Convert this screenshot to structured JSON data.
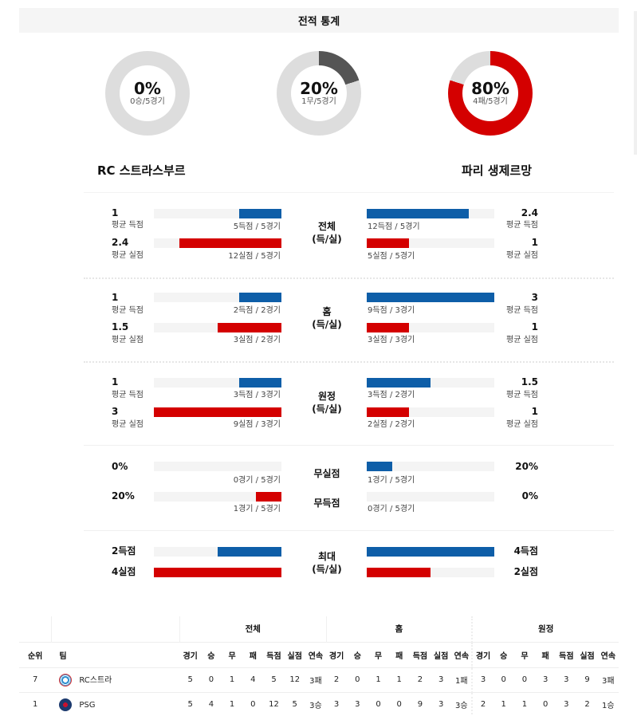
{
  "title": "전적 통계",
  "donuts": [
    {
      "id": "win",
      "pct": "0%",
      "sub": "0승/5경기",
      "value": 0,
      "color": "#cccccc",
      "track": "#dddddd"
    },
    {
      "id": "draw",
      "pct": "20%",
      "sub": "1무/5경기",
      "value": 20,
      "color": "#555555",
      "track": "#dddddd"
    },
    {
      "id": "loss",
      "pct": "80%",
      "sub": "4패/5경기",
      "value": 80,
      "color": "#d40000",
      "track": "#dddddd"
    }
  ],
  "teams": {
    "home": "RC 스트라스부르",
    "away": "파리 생제르망"
  },
  "colors": {
    "blue": "#0e5ea8",
    "red": "#d40000",
    "track": "#f4f4f4"
  },
  "sections": {
    "overall": {
      "label_line1": "전체",
      "label_line2": "(득/실)",
      "left": {
        "scored": {
          "value": "1",
          "label": "평균 득점",
          "caption": "5득점 / 5경기",
          "pct": 33
        },
        "conceded": {
          "value": "2.4",
          "label": "평균 실점",
          "caption": "12실점 / 5경기",
          "pct": 80
        }
      },
      "right": {
        "scored": {
          "value": "2.4",
          "label": "평균 득점",
          "caption": "12득점 / 5경기",
          "pct": 80
        },
        "conceded": {
          "value": "1",
          "label": "평균 실점",
          "caption": "5실점 / 5경기",
          "pct": 33
        }
      }
    },
    "home": {
      "label_line1": "홈",
      "label_line2": "(득/실)",
      "left": {
        "scored": {
          "value": "1",
          "label": "평균 득점",
          "caption": "2득점 / 2경기",
          "pct": 33
        },
        "conceded": {
          "value": "1.5",
          "label": "평균 실점",
          "caption": "3실점 / 2경기",
          "pct": 50
        }
      },
      "right": {
        "scored": {
          "value": "3",
          "label": "평균 득점",
          "caption": "9득점 / 3경기",
          "pct": 100
        },
        "conceded": {
          "value": "1",
          "label": "평균 실점",
          "caption": "3실점 / 3경기",
          "pct": 33
        }
      }
    },
    "away": {
      "label_line1": "원정",
      "label_line2": "(득/실)",
      "left": {
        "scored": {
          "value": "1",
          "label": "평균 득점",
          "caption": "3득점 / 3경기",
          "pct": 33
        },
        "conceded": {
          "value": "3",
          "label": "평균 실점",
          "caption": "9실점 / 3경기",
          "pct": 100
        }
      },
      "right": {
        "scored": {
          "value": "1.5",
          "label": "평균 득점",
          "caption": "3득점 / 2경기",
          "pct": 50
        },
        "conceded": {
          "value": "1",
          "label": "평균 실점",
          "caption": "2실점 / 2경기",
          "pct": 33
        }
      }
    },
    "clean": {
      "label_clean_sheet": "무실점",
      "label_no_goal": "무득점",
      "left": {
        "clean_sheet": {
          "value": "0%",
          "caption": "0경기 / 5경기",
          "pct": 0
        },
        "no_goal": {
          "value": "20%",
          "caption": "1경기 / 5경기",
          "pct": 20
        }
      },
      "right": {
        "clean_sheet": {
          "value": "20%",
          "caption": "1경기 / 5경기",
          "pct": 20
        },
        "no_goal": {
          "value": "0%",
          "caption": "0경기 / 5경기",
          "pct": 0
        }
      }
    },
    "max": {
      "label_line1": "최대",
      "label_line2": "(득/실)",
      "left": {
        "scored": {
          "value": "2득점",
          "pct": 50
        },
        "conceded": {
          "value": "4실점",
          "pct": 100
        }
      },
      "right": {
        "scored": {
          "value": "4득점",
          "pct": 100
        },
        "conceded": {
          "value": "2실점",
          "pct": 50
        }
      }
    }
  },
  "table": {
    "groups": [
      "전체",
      "홈",
      "원정"
    ],
    "col_rank": "순위",
    "col_team": "팀",
    "sub_cols": [
      "경기",
      "승",
      "무",
      "패",
      "득점",
      "실점",
      "연속"
    ],
    "rows": [
      {
        "rank": "7",
        "team": "RC스트라",
        "logo": "rcs",
        "overall": [
          "5",
          "0",
          "1",
          "4",
          "5",
          "12",
          "3패"
        ],
        "home": [
          "2",
          "0",
          "1",
          "1",
          "2",
          "3",
          "1패"
        ],
        "away": [
          "3",
          "0",
          "0",
          "3",
          "3",
          "9",
          "3패"
        ]
      },
      {
        "rank": "1",
        "team": "PSG",
        "logo": "psg",
        "overall": [
          "5",
          "4",
          "1",
          "0",
          "12",
          "5",
          "3승"
        ],
        "home": [
          "3",
          "3",
          "0",
          "0",
          "9",
          "3",
          "3승"
        ],
        "away": [
          "2",
          "1",
          "1",
          "0",
          "3",
          "2",
          "1승"
        ]
      }
    ]
  }
}
